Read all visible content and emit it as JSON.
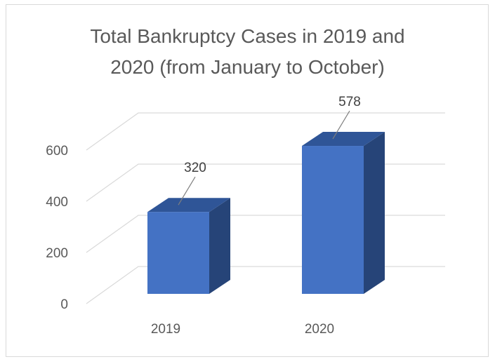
{
  "chart_data": {
    "type": "bar",
    "title": "Total Bankruptcy Cases in  2019 and 2020 (from January to October)",
    "title_lines": [
      "Total Bankruptcy Cases in  2019 and",
      "2020 (from January to October)"
    ],
    "categories": [
      "2019",
      "2020"
    ],
    "values": [
      320,
      578
    ],
    "data_labels": [
      "320",
      "578"
    ],
    "ylim": [
      0,
      600
    ],
    "yticks": [
      0,
      200,
      400,
      600
    ],
    "ytick_labels": [
      "0",
      "200",
      "400",
      "600"
    ],
    "grid": true,
    "legend": "none",
    "style": "3d-column",
    "colors": {
      "front": "#4472c4",
      "top": "#2f5597",
      "side": "#264478",
      "grid": "#d9d9d9",
      "text": "#595959"
    }
  }
}
